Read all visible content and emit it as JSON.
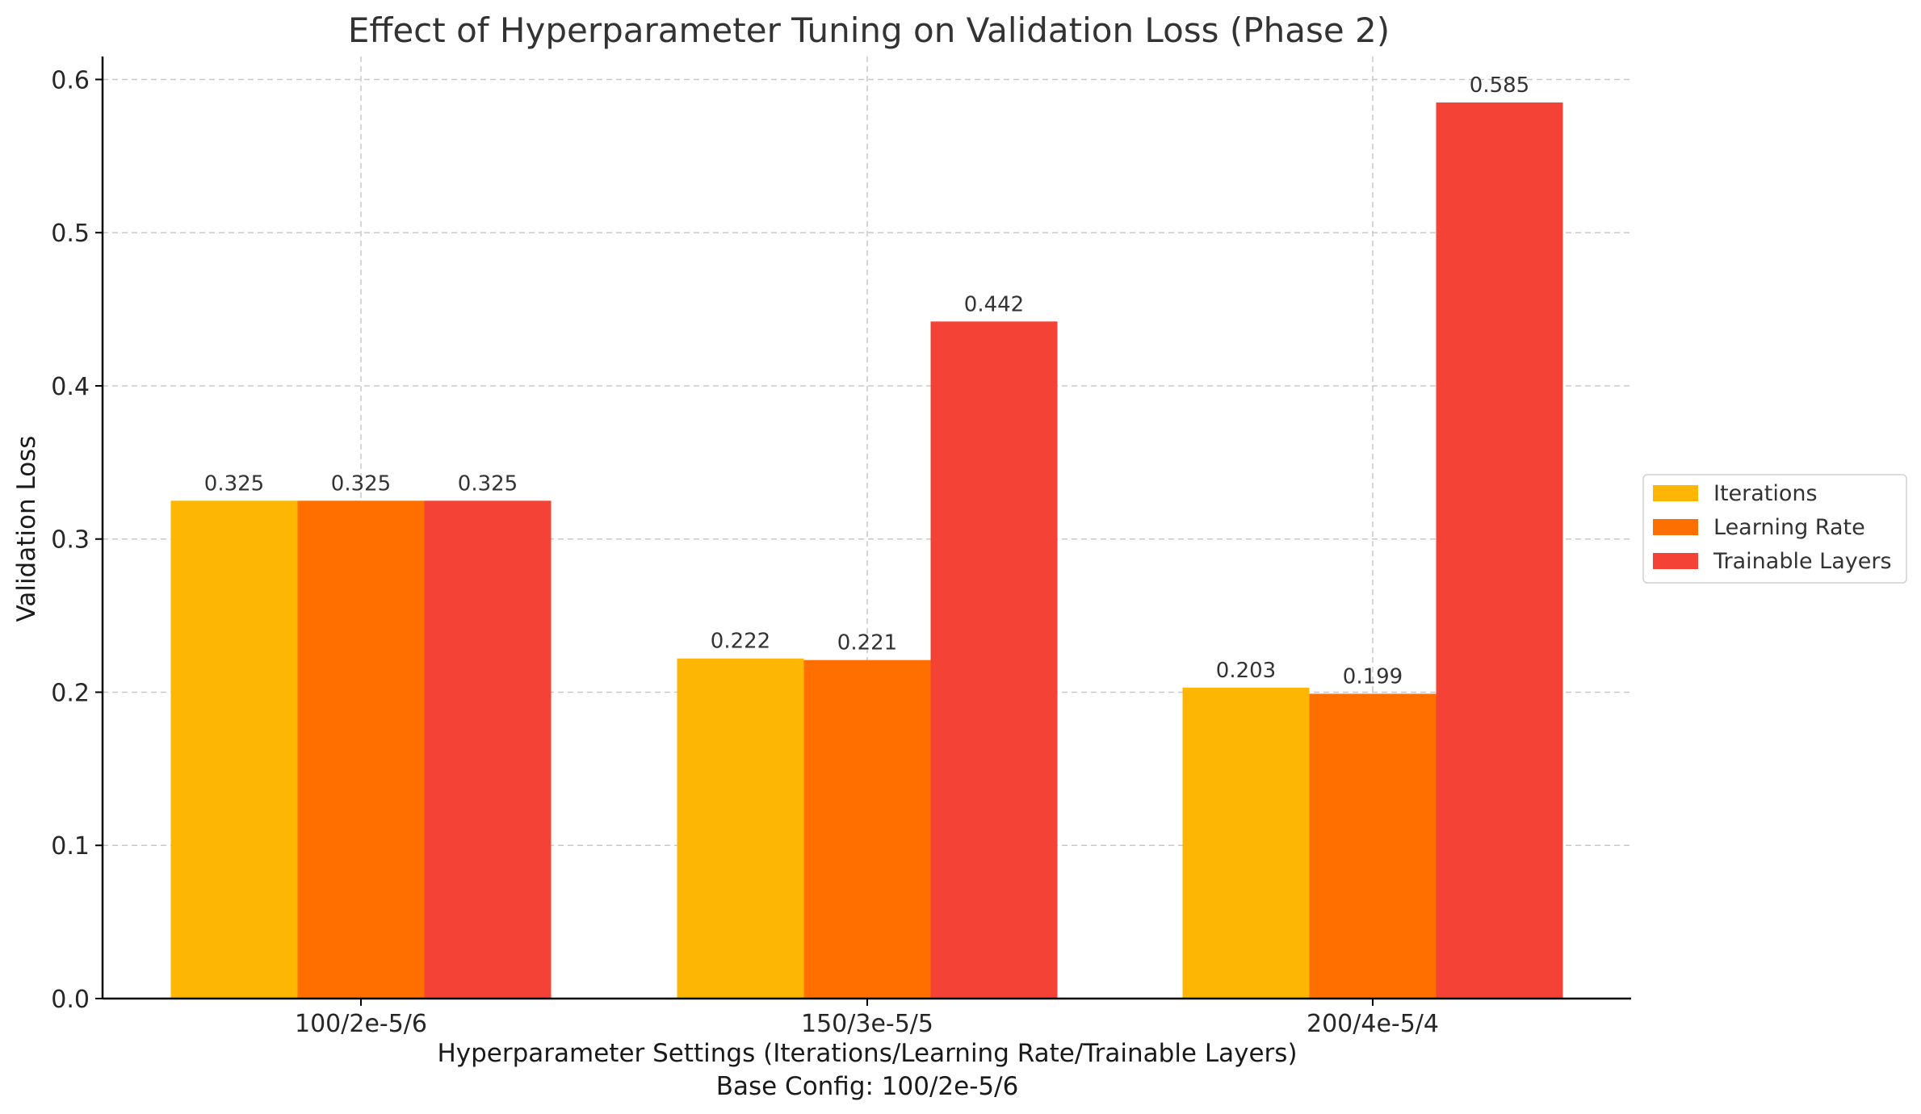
{
  "chart_data": {
    "type": "bar",
    "title": "Effect of Hyperparameter Tuning on Validation Loss (Phase 2)",
    "xlabel": "Hyperparameter Settings (Iterations/Learning Rate/Trainable Layers)",
    "xlabel_sub": "Base Config: 100/2e-5/6",
    "ylabel": "Validation Loss",
    "categories": [
      "100/2e-5/6",
      "150/3e-5/5",
      "200/4e-5/4"
    ],
    "ylim": [
      0,
      0.615
    ],
    "yticks": [
      0.0,
      0.1,
      0.2,
      0.3,
      0.4,
      0.5,
      0.6
    ],
    "ytick_labels": [
      "0.0",
      "0.1",
      "0.2",
      "0.3",
      "0.4",
      "0.5",
      "0.6"
    ],
    "grid": true,
    "legend_position": "right",
    "series": [
      {
        "name": "Iterations",
        "color": "#FDB604",
        "values": [
          0.325,
          0.222,
          0.203
        ],
        "labels": [
          "0.325",
          "0.222",
          "0.203"
        ]
      },
      {
        "name": "Learning Rate",
        "color": "#FE6F00",
        "values": [
          0.325,
          0.221,
          0.199
        ],
        "labels": [
          "0.325",
          "0.221",
          "0.199"
        ]
      },
      {
        "name": "Trainable Layers",
        "color": "#F44336",
        "values": [
          0.325,
          0.442,
          0.585
        ],
        "labels": [
          "0.325",
          "0.442",
          "0.585"
        ]
      }
    ]
  }
}
